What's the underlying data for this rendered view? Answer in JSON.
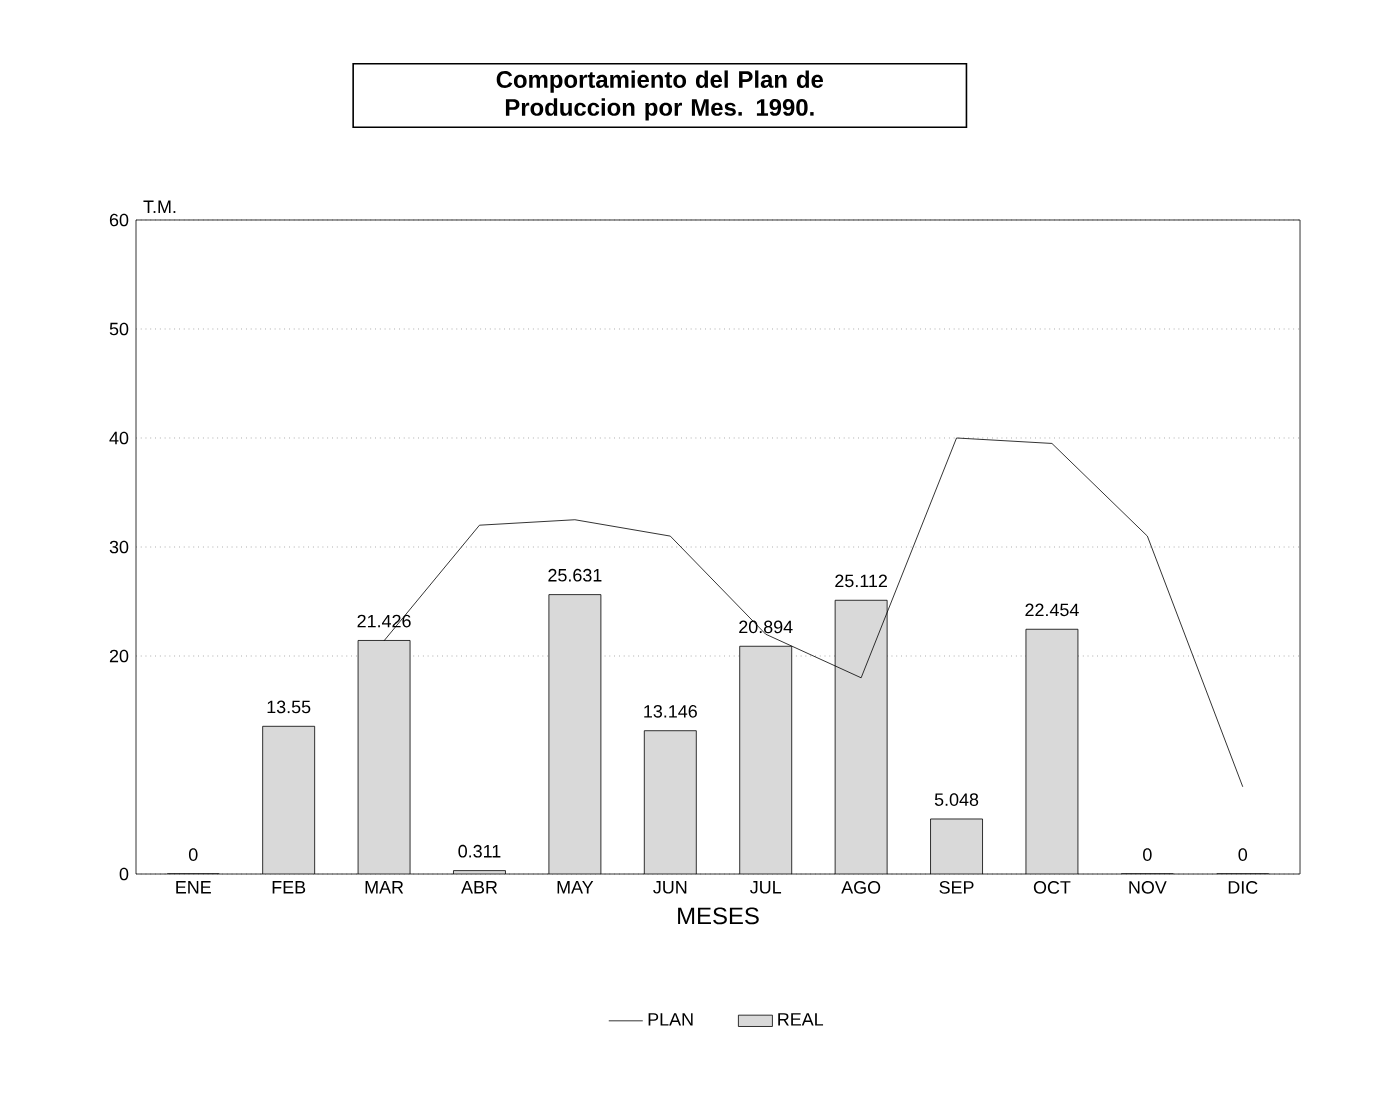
{
  "chart_data": {
    "type": "bar",
    "title": "Comportamiento del Plan de Produccion por Mes. 1990.",
    "xlabel": "MESES",
    "ylabel": "T.M.",
    "categories": [
      "ENE",
      "FEB",
      "MAR",
      "ABR",
      "MAY",
      "JUN",
      "JUL",
      "AGO",
      "SEP",
      "OCT",
      "NOV",
      "DIC"
    ],
    "series": [
      {
        "name": "PLAN",
        "type": "line",
        "color": "#000000",
        "values": [
          null,
          null,
          21.4,
          32,
          32.5,
          31,
          22,
          18,
          40,
          39.5,
          31,
          8
        ]
      },
      {
        "name": "REAL",
        "color": "#d9d9d9",
        "values": [
          0,
          13.55,
          21.426,
          0.311,
          25.631,
          13.146,
          20.894,
          25.112,
          5.048,
          22.454,
          0,
          0
        ],
        "value_labels": [
          "0",
          "13.55",
          "21.426",
          "0.311",
          "25.631",
          "13.146",
          "20.894",
          "25.112",
          "5.048",
          "22.454",
          "0",
          "0"
        ]
      }
    ],
    "ylim": [
      0,
      60
    ],
    "yticks": [
      0,
      20,
      30,
      40,
      50,
      60
    ],
    "grid": "y",
    "legend": "bottom",
    "marker": "none",
    "line_style": "solid"
  }
}
